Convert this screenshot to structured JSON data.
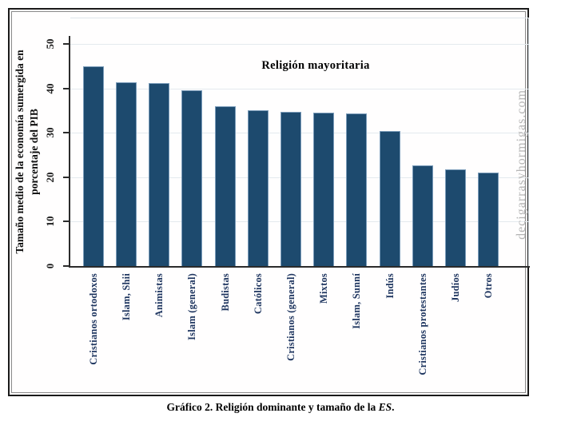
{
  "chart_data": {
    "type": "bar",
    "title": "Religión mayoritaria",
    "categories": [
      "Cristianos ortodoxos",
      "Islam, Shii",
      "Animistas",
      "Islam (general)",
      "Budistas",
      "Católicos",
      "Cristianos (general)",
      "Mixtos",
      "Islam, Sunní",
      "Indús",
      "Cristianos protestantes",
      "Judíos",
      "Otros"
    ],
    "values": [
      45.1,
      41.5,
      41.2,
      39.7,
      36.1,
      35.2,
      34.8,
      34.6,
      34.4,
      30.5,
      22.7,
      21.8,
      21.1
    ],
    "ylabel": "Tamaño medio de la economía sumergida en porcentaje del PIB",
    "ylabel_line1": "Tamaño medio de la economía sumergida en",
    "ylabel_line2": "porcentaje del PIB",
    "xlabel": "",
    "yticks": [
      0,
      10,
      20,
      30,
      40,
      50
    ],
    "ylim": [
      0,
      50
    ],
    "grid": true,
    "legend_position": "none",
    "bar_color": "#1d4a6e"
  },
  "watermark": "decigarrasyhormigas.com",
  "caption": {
    "prefix": "Gráfico 2. Religión dominante y tamaño de la ",
    "italic_word": "ES",
    "suffix": "."
  }
}
